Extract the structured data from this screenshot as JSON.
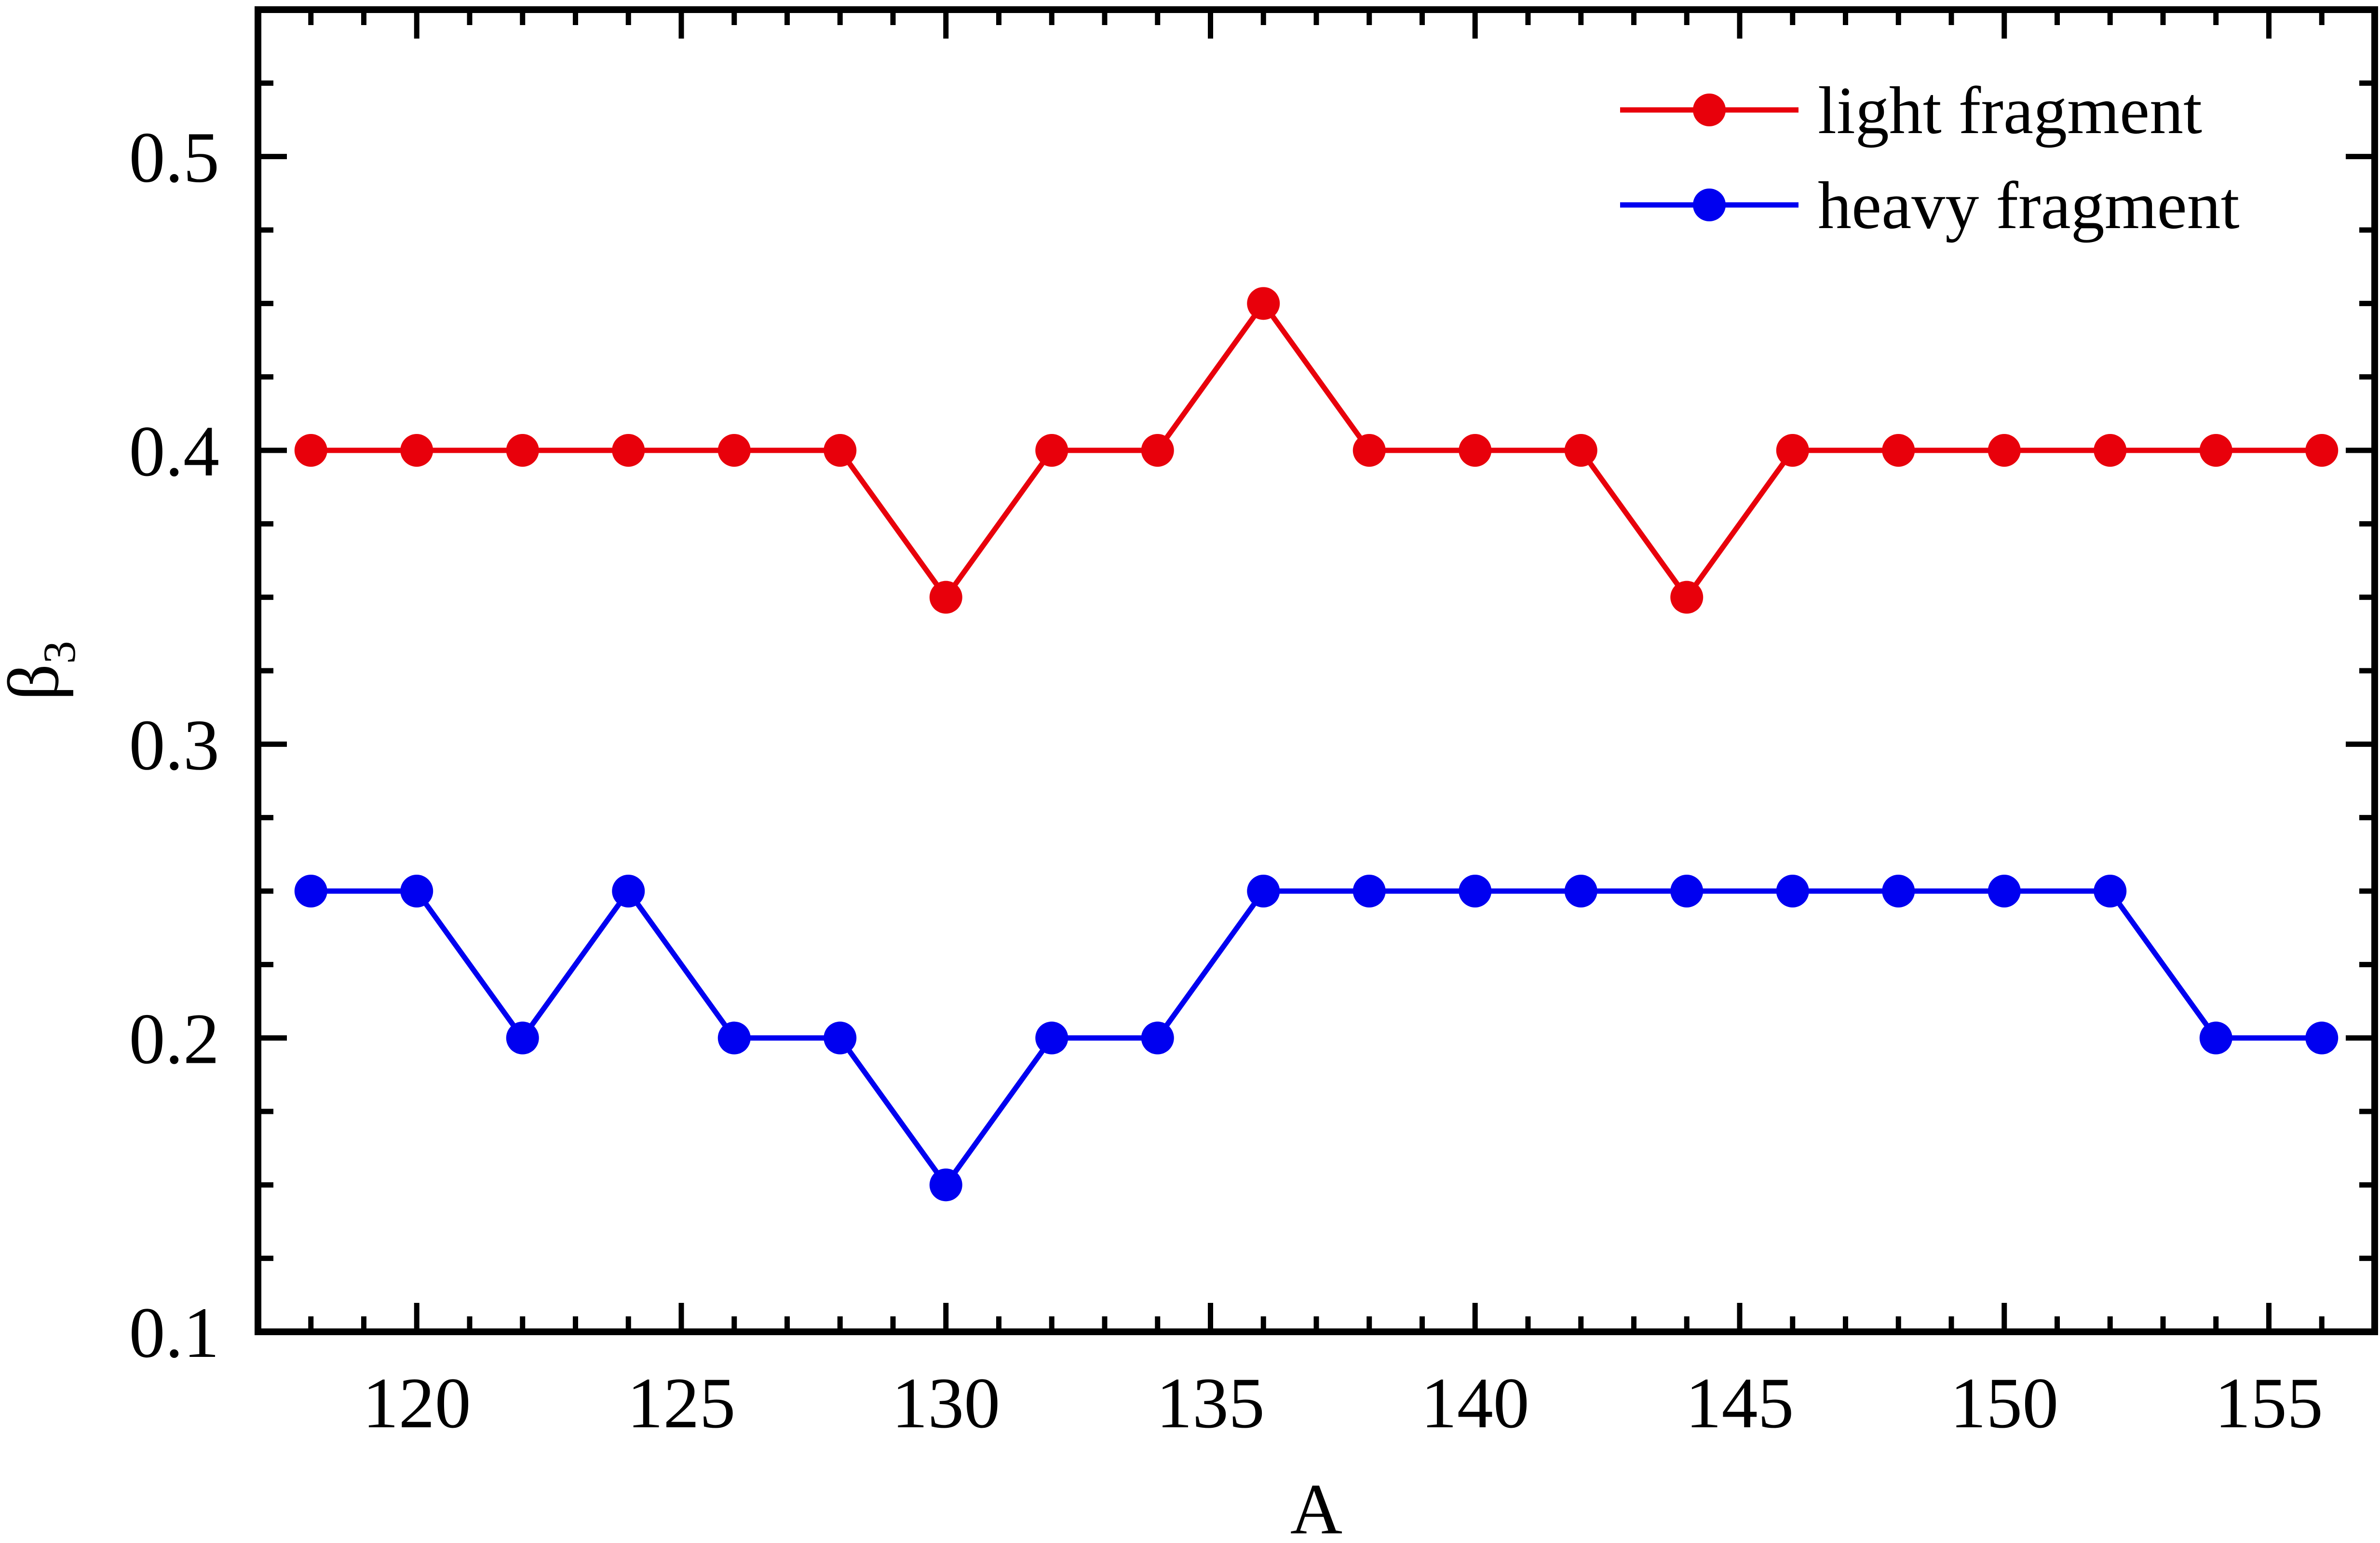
{
  "chart_data": {
    "type": "line",
    "title": "",
    "xlabel": "A",
    "ylabel": "β",
    "ylabel_subscript": "3",
    "xlim": [
      117,
      157
    ],
    "ylim": [
      0.1,
      0.55
    ],
    "xticks": [
      120,
      125,
      130,
      135,
      140,
      145,
      150,
      155
    ],
    "xtick_labels": [
      "120",
      "125",
      "130",
      "135",
      "140",
      "145",
      "150",
      "155"
    ],
    "yticks": [
      0.1,
      0.2,
      0.3,
      0.4,
      0.5
    ],
    "ytick_labels": [
      "0.1",
      "0.2",
      "0.3",
      "0.4",
      "0.5"
    ],
    "grid": false,
    "legend_position": "top-right",
    "x": [
      118,
      120,
      122,
      124,
      126,
      128,
      130,
      132,
      134,
      136,
      138,
      140,
      142,
      144,
      146,
      148,
      150,
      152,
      154,
      156
    ],
    "series": [
      {
        "name": "light fragment",
        "color": "#e8000b",
        "values": [
          0.4,
          0.4,
          0.4,
          0.4,
          0.4,
          0.4,
          0.35,
          0.4,
          0.4,
          0.45,
          0.4,
          0.4,
          0.4,
          0.35,
          0.4,
          0.4,
          0.4,
          0.4,
          0.4,
          0.4
        ]
      },
      {
        "name": "heavy fragment",
        "color": "#0000f0",
        "values": [
          0.25,
          0.25,
          0.2,
          0.25,
          0.2,
          0.2,
          0.15,
          0.2,
          0.2,
          0.25,
          0.25,
          0.25,
          0.25,
          0.25,
          0.25,
          0.25,
          0.25,
          0.25,
          0.2,
          0.2
        ]
      }
    ]
  }
}
